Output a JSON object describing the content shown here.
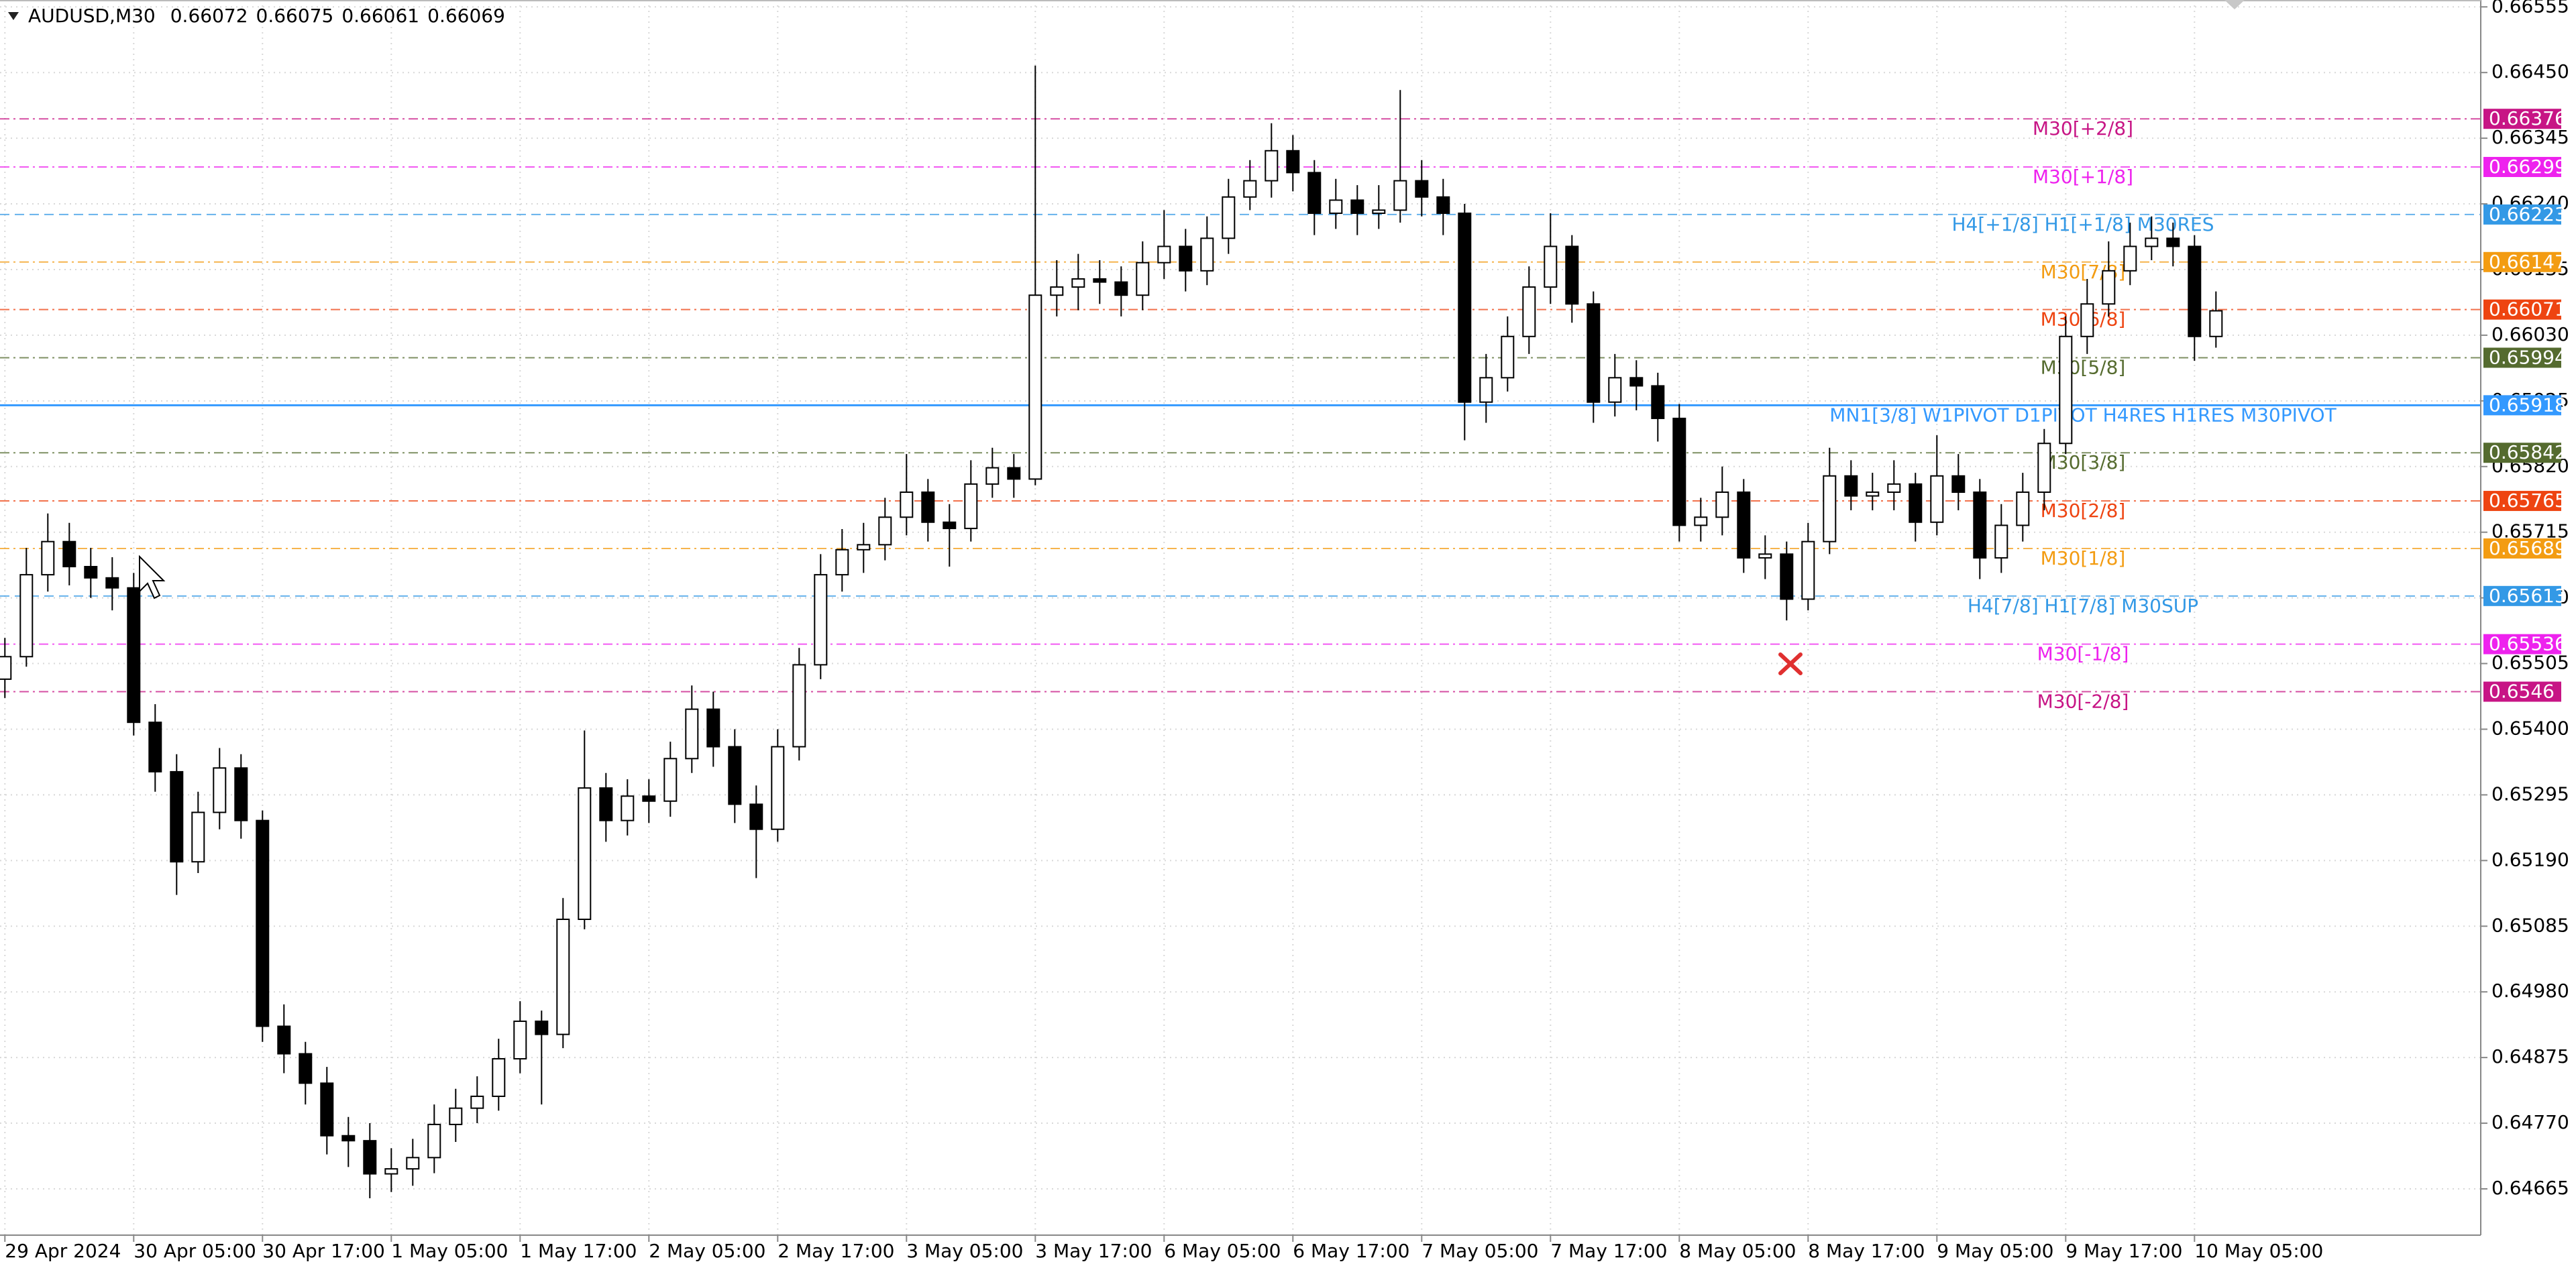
{
  "header": {
    "symbol": "AUDUSD,M30",
    "ohlc": [
      0.66072,
      0.66075,
      0.66061,
      0.66069
    ]
  },
  "chart_data": {
    "type": "candlestick",
    "categories": [
      "29 Apr 2024",
      null,
      null,
      null,
      null,
      null,
      "30 Apr 05:00",
      null,
      null,
      null,
      null,
      null,
      "30 Apr 17:00",
      null,
      null,
      null,
      null,
      null,
      "1 May 05:00",
      null,
      null,
      null,
      null,
      null,
      "1 May 17:00",
      null,
      null,
      null,
      null,
      null,
      "2 May 05:00",
      null,
      null,
      null,
      null,
      null,
      "2 May 17:00",
      null,
      null,
      null,
      null,
      null,
      "3 May 05:00",
      null,
      null,
      null,
      null,
      null,
      "3 May 17:00",
      null,
      null,
      null,
      null,
      null,
      "6 May 05:00",
      null,
      null,
      null,
      null,
      null,
      "6 May 17:00",
      null,
      null,
      null,
      null,
      null,
      "7 May 05:00",
      null,
      null,
      null,
      null,
      null,
      "7 May 17:00",
      null,
      null,
      null,
      null,
      null,
      "8 May 05:00",
      null,
      null,
      null,
      null,
      null,
      "8 May 17:00",
      null,
      null,
      null,
      null,
      null,
      "9 May 05:00",
      null,
      null,
      null,
      null,
      null,
      "9 May 17:00",
      null,
      null,
      null,
      null,
      null,
      "10 May 05:00",
      null
    ],
    "open": [
      0.6548,
      0.65516,
      0.65647,
      0.657,
      0.6566,
      0.65642,
      0.65626,
      0.65411,
      0.65332,
      0.65188,
      0.65267,
      0.65338,
      0.65254,
      0.64925,
      0.64881,
      0.64834,
      0.6475,
      0.64742,
      0.64689,
      0.64697,
      0.64715,
      0.64768,
      0.64794,
      0.64813,
      0.64873,
      0.64933,
      0.64912,
      0.65096,
      0.65306,
      0.65254,
      0.65293,
      0.65285,
      0.65353,
      0.65432,
      0.65372,
      0.6528,
      0.6524,
      0.65372,
      0.65503,
      0.65647,
      0.65687,
      0.65695,
      0.65739,
      0.65779,
      0.65731,
      0.65721,
      0.65792,
      0.65818,
      0.658,
      0.66094,
      0.66107,
      0.6612,
      0.66115,
      0.66094,
      0.66146,
      0.66172,
      0.66133,
      0.66185,
      0.66251,
      0.66277,
      0.66325,
      0.6629,
      0.66225,
      0.66246,
      0.66225,
      0.6623,
      0.66277,
      0.66251,
      0.66225,
      0.65923,
      0.65962,
      0.66028,
      0.66107,
      0.66172,
      0.6608,
      0.65923,
      0.65962,
      0.65949,
      0.65897,
      0.65726,
      0.65739,
      0.65779,
      0.65674,
      0.6568,
      0.65608,
      0.657,
      0.65805,
      0.65773,
      0.65779,
      0.65792,
      0.65731,
      0.65805,
      0.65779,
      0.65674,
      0.65726,
      0.65779,
      0.65857,
      0.66028,
      0.6608,
      0.66133,
      0.66172,
      0.66185,
      0.66172,
      0.66028
    ],
    "high": [
      0.65546,
      0.6569,
      0.65745,
      0.6573,
      0.6569,
      0.65675,
      0.6565,
      0.6544,
      0.6536,
      0.653,
      0.6537,
      0.6536,
      0.6527,
      0.6496,
      0.649,
      0.6486,
      0.6478,
      0.6477,
      0.6473,
      0.64745,
      0.648,
      0.64825,
      0.64845,
      0.64905,
      0.64965,
      0.6495,
      0.6513,
      0.65398,
      0.6533,
      0.6532,
      0.6532,
      0.6538,
      0.6547,
      0.6546,
      0.654,
      0.6531,
      0.654,
      0.6553,
      0.6568,
      0.6572,
      0.6573,
      0.6577,
      0.6584,
      0.658,
      0.6576,
      0.6583,
      0.6585,
      0.6584,
      0.66461,
      0.6615,
      0.6616,
      0.6615,
      0.6614,
      0.6618,
      0.6623,
      0.662,
      0.6622,
      0.6628,
      0.6631,
      0.66369,
      0.6635,
      0.6631,
      0.6628,
      0.6627,
      0.6627,
      0.66422,
      0.6631,
      0.6628,
      0.6624,
      0.66,
      0.6606,
      0.6614,
      0.66225,
      0.6619,
      0.661,
      0.66,
      0.6599,
      0.6597,
      0.6592,
      0.6577,
      0.6582,
      0.658,
      0.6571,
      0.657,
      0.6573,
      0.6585,
      0.6583,
      0.6581,
      0.6583,
      0.6581,
      0.6587,
      0.6584,
      0.658,
      0.6576,
      0.6581,
      0.6588,
      0.6606,
      0.6612,
      0.6618,
      0.6621,
      0.6622,
      0.6621,
      0.6619,
      0.661
    ],
    "low": [
      0.6545,
      0.655,
      0.6562,
      0.6563,
      0.6561,
      0.6559,
      0.6539,
      0.653,
      0.65135,
      0.6517,
      0.6524,
      0.65225,
      0.649,
      0.6485,
      0.648,
      0.6472,
      0.647,
      0.6465,
      0.6466,
      0.6467,
      0.6469,
      0.6474,
      0.6477,
      0.6479,
      0.6485,
      0.648,
      0.6489,
      0.6508,
      0.6522,
      0.6523,
      0.6525,
      0.6526,
      0.6533,
      0.6534,
      0.6525,
      0.65162,
      0.6522,
      0.6535,
      0.6548,
      0.6562,
      0.6565,
      0.6567,
      0.6571,
      0.657,
      0.6566,
      0.657,
      0.6577,
      0.6577,
      0.6579,
      0.6606,
      0.6607,
      0.6608,
      0.6606,
      0.6607,
      0.6612,
      0.661,
      0.6611,
      0.6616,
      0.6623,
      0.6625,
      0.6626,
      0.6619,
      0.662,
      0.6619,
      0.662,
      0.6621,
      0.6622,
      0.6619,
      0.65862,
      0.6589,
      0.6594,
      0.66,
      0.6608,
      0.6605,
      0.6589,
      0.659,
      0.6591,
      0.6586,
      0.657,
      0.657,
      0.6571,
      0.6565,
      0.6564,
      0.65574,
      0.6559,
      0.6568,
      0.6575,
      0.6575,
      0.6575,
      0.657,
      0.6571,
      0.6575,
      0.6564,
      0.6565,
      0.657,
      0.6575,
      0.6584,
      0.66,
      0.6606,
      0.6611,
      0.6615,
      0.6614,
      0.65989,
      0.6601
    ],
    "close": [
      0.65516,
      0.65647,
      0.657,
      0.6566,
      0.65642,
      0.65626,
      0.65411,
      0.65332,
      0.65188,
      0.65267,
      0.65338,
      0.65254,
      0.64925,
      0.64881,
      0.64834,
      0.6475,
      0.64742,
      0.64689,
      0.64697,
      0.64715,
      0.64768,
      0.64794,
      0.64813,
      0.64873,
      0.64933,
      0.64912,
      0.65096,
      0.65306,
      0.65254,
      0.65293,
      0.65285,
      0.65353,
      0.65432,
      0.65372,
      0.6528,
      0.6524,
      0.65372,
      0.65503,
      0.65647,
      0.65687,
      0.65695,
      0.65739,
      0.65779,
      0.65731,
      0.65721,
      0.65792,
      0.65818,
      0.658,
      0.66094,
      0.66107,
      0.6612,
      0.66115,
      0.66094,
      0.66146,
      0.66172,
      0.66133,
      0.66185,
      0.66251,
      0.66277,
      0.66325,
      0.6629,
      0.66225,
      0.66246,
      0.66225,
      0.6623,
      0.66277,
      0.66251,
      0.66225,
      0.65923,
      0.65962,
      0.66028,
      0.66107,
      0.66172,
      0.6608,
      0.65923,
      0.65962,
      0.65949,
      0.65897,
      0.65726,
      0.65739,
      0.65779,
      0.65674,
      0.6568,
      0.65608,
      0.657,
      0.65805,
      0.65773,
      0.65779,
      0.65792,
      0.65731,
      0.65805,
      0.65779,
      0.65674,
      0.65726,
      0.65779,
      0.65857,
      0.66028,
      0.6608,
      0.66133,
      0.66172,
      0.66185,
      0.66172,
      0.66028,
      0.66069
    ],
    "up_color": "#ffffff",
    "down_color": "#000000",
    "wick_color": "#000000",
    "ylim": [
      0.64591,
      0.66566
    ],
    "yticks": [
      0.66555,
      {
        "value": 0.6645,
        "label": "0.66450"
      },
      0.66345,
      {
        "value": 0.6624,
        "label": "0.66240"
      },
      0.66135,
      {
        "value": 0.6603,
        "label": "0.66030"
      },
      0.65925,
      {
        "value": 0.6582,
        "label": "0.65820"
      },
      0.65715,
      {
        "value": 0.6561,
        "label": "0.65610"
      },
      0.65505,
      {
        "value": 0.654,
        "label": "0.65400"
      },
      0.65295,
      {
        "value": 0.6519,
        "label": "0.65190"
      },
      0.65085,
      {
        "value": 0.6498,
        "label": "0.64980"
      },
      0.64875,
      {
        "value": 0.6477,
        "label": "0.64770"
      },
      0.64665
    ],
    "grid": true,
    "levels": [
      {
        "label": "M30[+2/8]",
        "value": 0.66376,
        "color": "#c71585",
        "dash": "dashdot"
      },
      {
        "label": "M30[+1/8]",
        "value": 0.66299,
        "color": "#ee22ee",
        "dash": "dashdot"
      },
      {
        "label": "H4[+1/8] H1[+1/8] M30RES",
        "value": 0.66223,
        "color": "#3399e6",
        "dash": "dashed"
      },
      {
        "label": "M30[7/8]",
        "value": 0.66147,
        "color": "#f39c12",
        "dash": "dashdot"
      },
      {
        "label": "M30[6/8]",
        "value": 0.66071,
        "color": "#ee4411",
        "dash": "dashdot"
      },
      {
        "label": "M30[5/8]",
        "value": 0.65994,
        "color": "#556b2f",
        "dash": "dashdot"
      },
      {
        "label": "MN1[3/8] W1PIVOT D1PIVOT H4RES H1RES M30PIVOT",
        "value": 0.65918,
        "color": "#3399ff",
        "dash": "solid"
      },
      {
        "label": "M30[3/8]",
        "value": 0.65842,
        "color": "#556b2f",
        "dash": "dashdot"
      },
      {
        "label": "M30[2/8]",
        "value": 0.65765,
        "color": "#ee4411",
        "dash": "dashdot"
      },
      {
        "label": "M30[1/8]",
        "value": 0.65689,
        "color": "#f39c12",
        "dash": "dashdot"
      },
      {
        "label": "H4[7/8] H1[7/8] M30SUP",
        "value": 0.65613,
        "color": "#3399e6",
        "dash": "dashed"
      },
      {
        "label": "M30[-1/8]",
        "value": 0.65536,
        "color": "#ee22ee",
        "dash": "dashdot"
      },
      {
        "label": "M30[-2/8]",
        "value": 0.6546,
        "color": "#c71585",
        "dash": "dashdot"
      }
    ]
  }
}
